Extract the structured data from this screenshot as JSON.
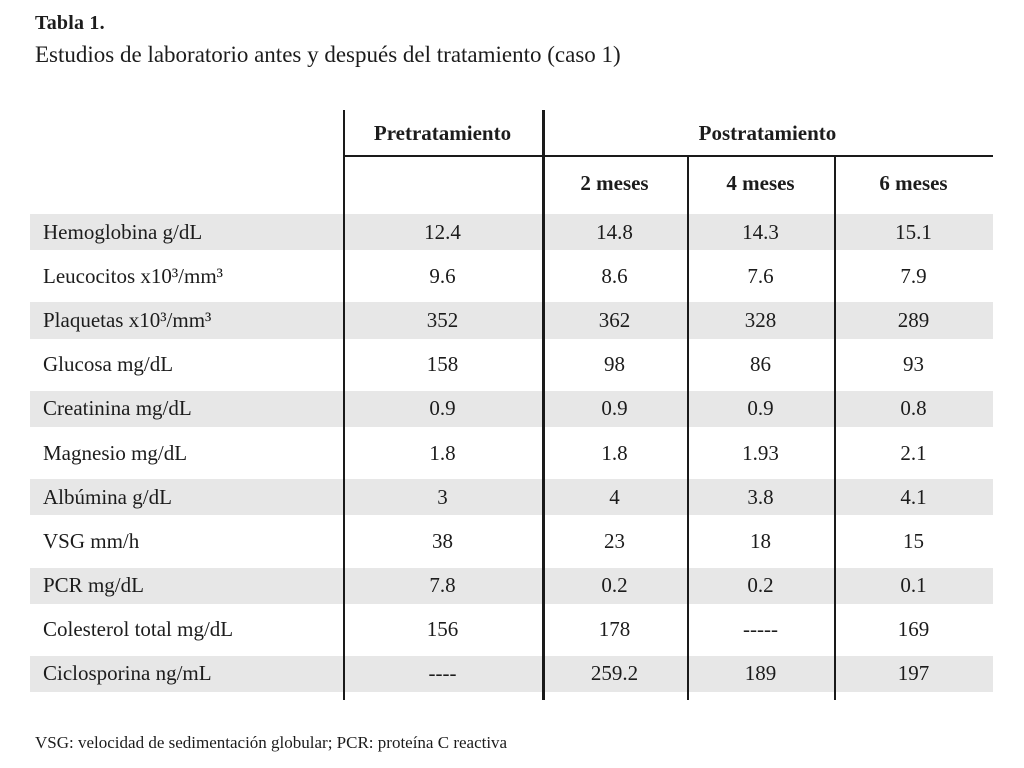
{
  "title": "Tabla 1.",
  "subtitle": "Estudios de laboratorio antes y después del tratamiento (caso 1)",
  "table": {
    "pre_header": "Pretratamiento",
    "post_header": "Postratamiento",
    "post_sub": [
      "2 meses",
      "4 meses",
      "6 meses"
    ],
    "rows": [
      {
        "label": "Hemoglobina g/dL",
        "values": [
          "12.4",
          "14.8",
          "14.3",
          "15.1"
        ]
      },
      {
        "label": "Leucocitos x10³/mm³",
        "values": [
          "9.6",
          "8.6",
          "7.6",
          "7.9"
        ]
      },
      {
        "label": "Plaquetas x10³/mm³",
        "values": [
          "352",
          "362",
          "328",
          "289"
        ]
      },
      {
        "label": "Glucosa mg/dL",
        "values": [
          "158",
          "98",
          "86",
          "93"
        ]
      },
      {
        "label": "Creatinina mg/dL",
        "values": [
          "0.9",
          "0.9",
          "0.9",
          "0.8"
        ]
      },
      {
        "label": "Magnesio mg/dL",
        "values": [
          "1.8",
          "1.8",
          "1.93",
          "2.1"
        ]
      },
      {
        "label": "Albúmina g/dL",
        "values": [
          "3",
          "4",
          "3.8",
          "4.1"
        ]
      },
      {
        "label": "VSG mm/h",
        "values": [
          "38",
          "23",
          "18",
          "15"
        ]
      },
      {
        "label": "PCR mg/dL",
        "values": [
          "7.8",
          "0.2",
          "0.2",
          "0.1"
        ]
      },
      {
        "label": "Colesterol total mg/dL",
        "values": [
          "156",
          "178",
          "-----",
          "169"
        ]
      },
      {
        "label": "Ciclosporina ng/mL",
        "values": [
          "----",
          "259.2",
          "189",
          "197"
        ]
      }
    ]
  },
  "footnote": "VSG: velocidad de sedimentación globular; PCR: proteína C reactiva",
  "colors": {
    "row_shade": "#e7e7e7",
    "text": "#1c1c1c",
    "line": "#1a1a1a",
    "background": "#ffffff"
  }
}
